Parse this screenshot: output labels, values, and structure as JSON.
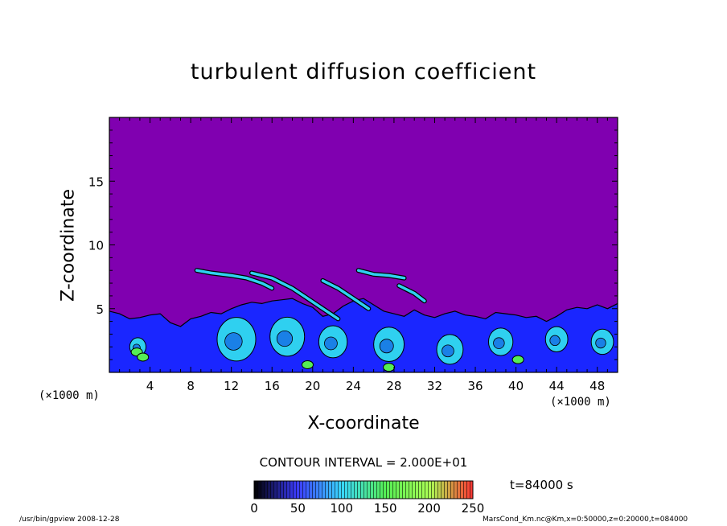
{
  "chart_data": {
    "type": "heatmap",
    "title": "turbulent diffusion coefficient",
    "xlabel": "X-coordinate",
    "ylabel": "Z-coordinate",
    "x_unit": "(×1000 m)",
    "y_unit": "(×1000 m)",
    "xlim": [
      0,
      50
    ],
    "ylim": [
      0,
      20
    ],
    "x_ticks": [
      4,
      8,
      12,
      16,
      20,
      24,
      28,
      32,
      36,
      40,
      44,
      48
    ],
    "y_ticks": [
      5,
      10,
      15
    ],
    "contour_interval": "CONTOUR INTERVAL = 2.000E+01",
    "time_label": "t=84000 s",
    "colorbar": {
      "ticks": [
        0,
        50,
        100,
        150,
        200,
        250
      ],
      "colors": [
        "#000000",
        "#3c3cff",
        "#39d8ff",
        "#55ee55",
        "#aaff55",
        "#ff3333"
      ]
    },
    "background_color": "#8000b0",
    "layer_color": "#1a26ff",
    "eddy_color": "#2fd0f0",
    "boundary_layer_top": [
      [
        0,
        4.8
      ],
      [
        1,
        4.6
      ],
      [
        2,
        4.2
      ],
      [
        3,
        4.3
      ],
      [
        4,
        4.5
      ],
      [
        5,
        4.6
      ],
      [
        6,
        3.9
      ],
      [
        7,
        3.6
      ],
      [
        8,
        4.2
      ],
      [
        9,
        4.4
      ],
      [
        10,
        4.7
      ],
      [
        11,
        4.6
      ],
      [
        12,
        5.0
      ],
      [
        13,
        5.3
      ],
      [
        14,
        5.5
      ],
      [
        15,
        5.4
      ],
      [
        16,
        5.6
      ],
      [
        17,
        5.7
      ],
      [
        18,
        5.8
      ],
      [
        19,
        5.4
      ],
      [
        20,
        5.1
      ],
      [
        21,
        4.4
      ],
      [
        22,
        4.6
      ],
      [
        23,
        5.2
      ],
      [
        24,
        5.6
      ],
      [
        25,
        5.8
      ],
      [
        26,
        5.3
      ],
      [
        27,
        4.8
      ],
      [
        28,
        4.6
      ],
      [
        29,
        4.4
      ],
      [
        30,
        4.9
      ],
      [
        31,
        4.5
      ],
      [
        32,
        4.3
      ],
      [
        33,
        4.6
      ],
      [
        34,
        4.8
      ],
      [
        35,
        4.5
      ],
      [
        36,
        4.4
      ],
      [
        37,
        4.2
      ],
      [
        38,
        4.7
      ],
      [
        39,
        4.6
      ],
      [
        40,
        4.5
      ],
      [
        41,
        4.3
      ],
      [
        42,
        4.4
      ],
      [
        43,
        4.0
      ],
      [
        44,
        4.4
      ],
      [
        45,
        4.9
      ],
      [
        46,
        5.1
      ],
      [
        47,
        5.0
      ],
      [
        48,
        5.3
      ],
      [
        49,
        5.0
      ],
      [
        50,
        5.4
      ]
    ],
    "upper_filaments": [
      [
        [
          8.6,
          8.0
        ],
        [
          10,
          7.8
        ],
        [
          12,
          7.6
        ],
        [
          13.5,
          7.4
        ],
        [
          15,
          7.0
        ],
        [
          16,
          6.6
        ]
      ],
      [
        [
          14,
          7.8
        ],
        [
          16,
          7.4
        ],
        [
          18,
          6.6
        ],
        [
          19.5,
          5.8
        ],
        [
          21,
          5.0
        ],
        [
          22.5,
          4.2
        ]
      ],
      [
        [
          21,
          7.2
        ],
        [
          22.5,
          6.6
        ],
        [
          24,
          5.8
        ],
        [
          25.5,
          5.0
        ]
      ],
      [
        [
          24.5,
          8.0
        ],
        [
          26,
          7.7
        ],
        [
          27.5,
          7.6
        ],
        [
          29,
          7.4
        ]
      ],
      [
        [
          28.5,
          6.8
        ],
        [
          30,
          6.2
        ],
        [
          31,
          5.6
        ]
      ]
    ],
    "eddies": [
      [
        12.5,
        2.6,
        3.8
      ],
      [
        17.5,
        2.8,
        3.4
      ],
      [
        22,
        2.4,
        2.8
      ],
      [
        27.5,
        2.2,
        3.0
      ],
      [
        33.5,
        1.8,
        2.6
      ],
      [
        38.5,
        2.4,
        2.4
      ],
      [
        44,
        2.6,
        2.2
      ],
      [
        48.5,
        2.4,
        2.2
      ],
      [
        2.8,
        2.0,
        1.6
      ]
    ],
    "green_spots": [
      [
        2.7,
        1.6
      ],
      [
        3.3,
        1.2
      ],
      [
        27.5,
        0.4
      ],
      [
        40.2,
        1.0
      ],
      [
        19.5,
        0.6
      ]
    ]
  },
  "footer": {
    "left": "/usr/bin/gpview   2008-12-28",
    "right": "MarsCond_Km.nc@Km,x=0:50000,z=0:20000,t=084000"
  }
}
